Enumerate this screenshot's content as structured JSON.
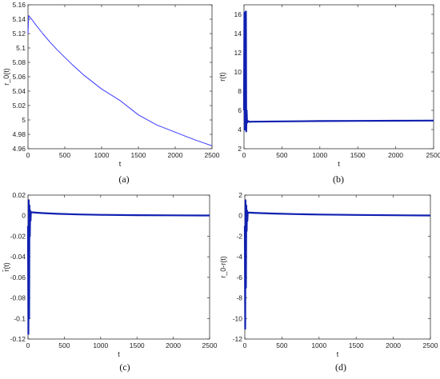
{
  "figure": {
    "captions": [
      "(a)",
      "(b)",
      "(c)",
      "(d)"
    ]
  },
  "colors": {
    "series": "#3a3aff",
    "series_dark": "#1020b0",
    "axis": "#333333"
  },
  "chart_data": [
    {
      "type": "line",
      "xlabel": "t",
      "ylabel": "r_0(t)",
      "xlim": [
        0,
        2500
      ],
      "ylim": [
        4.96,
        5.16
      ],
      "xticks": [
        0,
        500,
        1000,
        1500,
        2000,
        2500
      ],
      "yticks": [
        4.96,
        4.98,
        5.0,
        5.02,
        5.04,
        5.06,
        5.08,
        5.1,
        5.12,
        5.14,
        5.16
      ],
      "ytick_labels": [
        "4.96",
        "4.98",
        "5",
        "5.02",
        "5.04",
        "5.06",
        "5.08",
        "5.1",
        "5.12",
        "5.14",
        "5.16"
      ],
      "grid": false,
      "series": [
        {
          "x": [
            0,
            10,
            25,
            50,
            100,
            200,
            300,
            400,
            500,
            600,
            750,
            1000,
            1250,
            1500,
            1750,
            2000,
            2250,
            2500
          ],
          "y": [
            5.12,
            5.145,
            5.143,
            5.14,
            5.133,
            5.12,
            5.108,
            5.097,
            5.087,
            5.077,
            5.063,
            5.043,
            5.027,
            5.007,
            4.993,
            4.983,
            4.973,
            4.964
          ]
        }
      ]
    },
    {
      "type": "line",
      "xlabel": "t",
      "ylabel": "r(t)",
      "xlim": [
        0,
        2500
      ],
      "ylim": [
        2,
        17
      ],
      "xticks": [
        0,
        500,
        1000,
        1500,
        2000,
        2500
      ],
      "yticks": [
        2,
        4,
        6,
        8,
        10,
        12,
        14,
        16
      ],
      "ytick_labels": [
        "2",
        "4",
        "6",
        "8",
        "10",
        "12",
        "14",
        "16"
      ],
      "grid": false,
      "series": [
        {
          "x": [
            0,
            5,
            10,
            15,
            20,
            25,
            30,
            35,
            40,
            50,
            70,
            100,
            500,
            1000,
            1500,
            2000,
            2500
          ],
          "y": [
            6.0,
            16.2,
            4.0,
            12.5,
            4.2,
            16.3,
            3.8,
            6.0,
            4.7,
            4.9,
            4.8,
            4.82,
            4.85,
            4.88,
            4.9,
            4.92,
            4.93
          ]
        }
      ]
    },
    {
      "type": "line",
      "xlabel": "t",
      "ylabel": "r̄(t)",
      "xlim": [
        0,
        2500
      ],
      "ylim": [
        -0.12,
        0.02
      ],
      "xticks": [
        0,
        500,
        1000,
        1500,
        2000,
        2500
      ],
      "yticks": [
        -0.12,
        -0.1,
        -0.08,
        -0.06,
        -0.04,
        -0.02,
        0,
        0.02
      ],
      "ytick_labels": [
        "-0.12",
        "-0.1",
        "-0.08",
        "-0.06",
        "-0.04",
        "-0.02",
        "0",
        "0.02"
      ],
      "grid": false,
      "series": [
        {
          "x": [
            0,
            5,
            10,
            15,
            20,
            25,
            30,
            35,
            40,
            50,
            100,
            200,
            400,
            700,
            1000,
            1500,
            2000,
            2500
          ],
          "y": [
            -0.01,
            -0.115,
            0.015,
            -0.1,
            0.01,
            -0.02,
            0.005,
            -0.005,
            0.0035,
            0.0033,
            0.003,
            0.0025,
            0.0018,
            0.0012,
            0.0008,
            0.0005,
            0.0003,
            0.0002
          ]
        }
      ]
    },
    {
      "type": "line",
      "xlabel": "t",
      "ylabel": "r_0-r(t)",
      "xlim": [
        0,
        2500
      ],
      "ylim": [
        -12,
        2
      ],
      "xticks": [
        0,
        500,
        1000,
        1500,
        2000,
        2500
      ],
      "yticks": [
        -12,
        -10,
        -8,
        -6,
        -4,
        -2,
        0,
        2
      ],
      "ytick_labels": [
        "-12",
        "-10",
        "-8",
        "-6",
        "-4",
        "-2",
        "0",
        "2"
      ],
      "grid": false,
      "series": [
        {
          "x": [
            0,
            5,
            10,
            15,
            20,
            25,
            30,
            35,
            40,
            50,
            100,
            200,
            400,
            700,
            1000,
            1500,
            2000,
            2500
          ],
          "y": [
            -1.0,
            -11.0,
            1.5,
            -7.0,
            1.0,
            -1.5,
            0.5,
            -0.5,
            0.32,
            0.3,
            0.28,
            0.25,
            0.2,
            0.15,
            0.11,
            0.07,
            0.04,
            0.02
          ]
        }
      ]
    }
  ]
}
